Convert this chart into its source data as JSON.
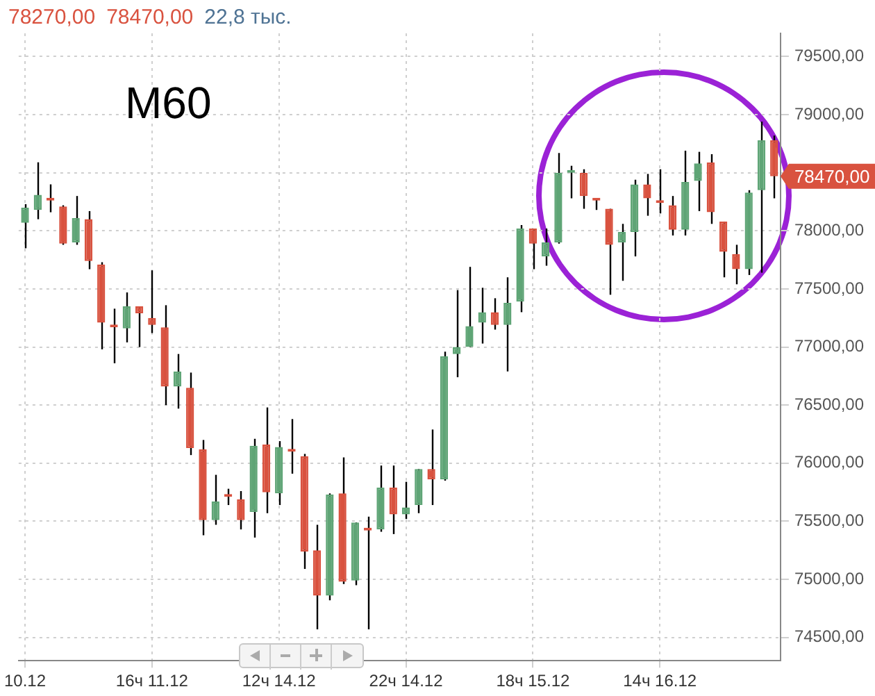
{
  "chart_data": {
    "type": "candlestick",
    "title": "M60",
    "annotations": [
      "78270,00",
      "78470,00",
      "22,8 тыс.",
      "78470,00"
    ],
    "categories": [
      "10.12",
      null,
      null,
      null,
      null,
      null,
      null,
      null,
      null,
      null,
      "16ч 11.12",
      null,
      null,
      null,
      null,
      null,
      null,
      null,
      null,
      null,
      "12ч 14.12",
      null,
      null,
      null,
      null,
      null,
      null,
      null,
      null,
      null,
      "22ч 14.12",
      null,
      null,
      null,
      null,
      null,
      null,
      null,
      null,
      null,
      "18ч 15.12",
      null,
      null,
      null,
      null,
      null,
      null,
      null,
      null,
      null,
      "14ч 16.12",
      null,
      null,
      null,
      null,
      null,
      null,
      null,
      null,
      null
    ],
    "ohlc": [
      [
        78070,
        78230,
        77850,
        78200
      ],
      [
        78180,
        78590,
        78100,
        78310
      ],
      [
        78280,
        78400,
        78160,
        78260
      ],
      [
        78210,
        78220,
        77880,
        77890
      ],
      [
        77900,
        78300,
        77880,
        78110
      ],
      [
        78100,
        78170,
        77670,
        77740
      ],
      [
        77710,
        77730,
        76980,
        77210
      ],
      [
        77190,
        77330,
        76860,
        77170
      ],
      [
        77160,
        77470,
        77040,
        77350
      ],
      [
        77350,
        77350,
        77000,
        77290
      ],
      [
        77250,
        77660,
        77120,
        77190
      ],
      [
        77170,
        77360,
        76500,
        76660
      ],
      [
        76660,
        76940,
        76470,
        76790
      ],
      [
        76650,
        76780,
        76070,
        76130
      ],
      [
        76120,
        76200,
        75380,
        75510
      ],
      [
        75510,
        75900,
        75470,
        75670
      ],
      [
        75730,
        75780,
        75640,
        75710
      ],
      [
        75690,
        75760,
        75430,
        75510
      ],
      [
        75580,
        76210,
        75360,
        76150
      ],
      [
        76160,
        76480,
        75570,
        75750
      ],
      [
        75740,
        76190,
        75640,
        76140
      ],
      [
        76120,
        76380,
        75910,
        76100
      ],
      [
        76060,
        76080,
        75090,
        75240
      ],
      [
        75250,
        75470,
        74570,
        74860
      ],
      [
        74860,
        75740,
        74820,
        75730
      ],
      [
        75740,
        76050,
        74960,
        74980
      ],
      [
        74990,
        75490,
        74950,
        75490
      ],
      [
        75440,
        75540,
        74570,
        75420
      ],
      [
        75430,
        75980,
        75410,
        75790
      ],
      [
        75790,
        75980,
        75390,
        75560
      ],
      [
        75560,
        75840,
        75520,
        75620
      ],
      [
        75640,
        75950,
        75570,
        75950
      ],
      [
        75950,
        76290,
        75640,
        75860
      ],
      [
        75860,
        76960,
        75850,
        76920
      ],
      [
        76940,
        77490,
        76740,
        77000
      ],
      [
        77000,
        77690,
        77000,
        77180
      ],
      [
        77210,
        77510,
        77030,
        77300
      ],
      [
        77300,
        77420,
        77150,
        77190
      ],
      [
        77190,
        77600,
        76790,
        77380
      ],
      [
        77390,
        78050,
        77300,
        78020
      ],
      [
        78020,
        78020,
        77670,
        77890
      ],
      [
        77780,
        78020,
        77700,
        77900
      ],
      [
        77900,
        78670,
        77890,
        78500
      ],
      [
        78500,
        78560,
        78280,
        78510
      ],
      [
        78500,
        78530,
        78190,
        78300
      ],
      [
        78280,
        78280,
        78180,
        78260
      ],
      [
        78190,
        78190,
        77450,
        77880
      ],
      [
        77900,
        78060,
        77570,
        77990
      ],
      [
        77990,
        78440,
        77780,
        78400
      ],
      [
        78400,
        78490,
        78130,
        78280
      ],
      [
        78260,
        78530,
        78150,
        78240
      ],
      [
        78220,
        78300,
        77960,
        78010
      ],
      [
        78010,
        78690,
        77960,
        78420
      ],
      [
        78430,
        78680,
        78170,
        78580
      ],
      [
        78590,
        78660,
        78060,
        78160
      ],
      [
        78080,
        78080,
        77600,
        77820
      ],
      [
        77800,
        77880,
        77540,
        77670
      ],
      [
        77670,
        78350,
        77620,
        78330
      ],
      [
        78350,
        78940,
        77640,
        78780
      ],
      [
        78780,
        78820,
        78280,
        78470
      ]
    ],
    "colors": [
      "#5fa576",
      "#5fa576",
      "#d9523f",
      "#d9523f",
      "#5fa576",
      "#d9523f",
      "#d9523f",
      "#d9523f",
      "#5fa576",
      "#d9523f",
      "#d9523f",
      "#d9523f",
      "#5fa576",
      "#d9523f",
      "#d9523f",
      "#5fa576",
      "#d9523f",
      "#d9523f",
      "#5fa576",
      "#d9523f",
      "#5fa576",
      "#d9523f",
      "#d9523f",
      "#d9523f",
      "#5fa576",
      "#d9523f",
      "#5fa576",
      "#d9523f",
      "#5fa576",
      "#d9523f",
      "#5fa576",
      "#5fa576",
      "#d9523f",
      "#5fa576",
      "#5fa576",
      "#5fa576",
      "#5fa576",
      "#d9523f",
      "#5fa576",
      "#5fa576",
      "#d9523f",
      "#5fa576",
      "#5fa576",
      "#5fa576",
      "#d9523f",
      "#d9523f",
      "#d9523f",
      "#5fa576",
      "#5fa576",
      "#d9523f",
      "#d9523f",
      "#d9523f",
      "#5fa576",
      "#5fa576",
      "#d9523f",
      "#d9523f",
      "#d9523f",
      "#5fa576",
      "#5fa576",
      "#d9523f"
    ],
    "ylim": [
      74300,
      79700
    ],
    "yticks": [
      {
        "value": 74500,
        "label": "74500,00"
      },
      {
        "value": 75000,
        "label": "75000,00"
      },
      {
        "value": 75500,
        "label": "75500,00"
      },
      {
        "value": 76000,
        "label": "76000,00"
      },
      {
        "value": 76500,
        "label": "76500,00"
      },
      {
        "value": 77000,
        "label": "77000,00"
      },
      {
        "value": 77500,
        "label": "77500,00"
      },
      {
        "value": 78000,
        "label": "78000,00"
      },
      {
        "value": 78500,
        "label": null
      },
      {
        "value": 79000,
        "label": "79000,00"
      },
      {
        "value": 79500,
        "label": "79500,00"
      }
    ],
    "grid": true,
    "legend": false
  }
}
